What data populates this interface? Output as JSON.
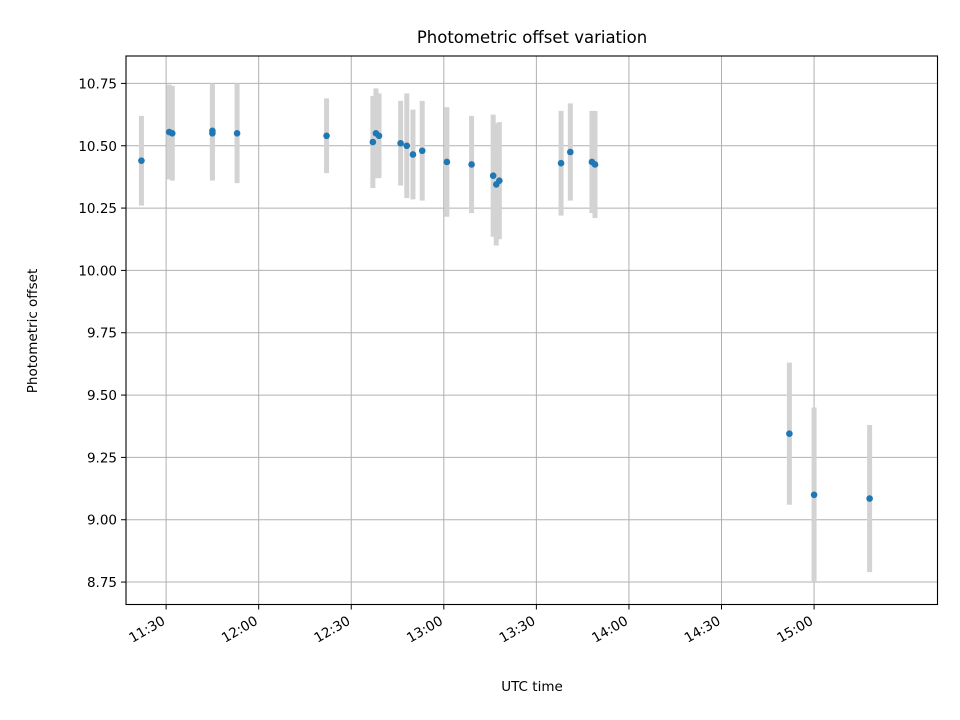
{
  "chart_data": {
    "type": "scatter",
    "title": "Photometric offset variation",
    "xlabel": "UTC time",
    "ylabel": "Photometric offset",
    "xlim": [
      "11:17",
      "15:40"
    ],
    "ylim": [
      8.66,
      10.86
    ],
    "grid": true,
    "colors": {
      "marker": "#1f77b4",
      "errorbar": "#d3d3d3",
      "grid": "#b0b0b0",
      "axes": "#000000"
    },
    "x_ticks": [
      "11:30",
      "12:00",
      "12:30",
      "13:00",
      "13:30",
      "14:00",
      "14:30",
      "15:00"
    ],
    "y_ticks": [
      "8.75",
      "9.00",
      "9.25",
      "9.50",
      "9.75",
      "10.00",
      "10.25",
      "10.50",
      "10.75"
    ],
    "series": [
      {
        "points": [
          {
            "x": "11:22",
            "y": 10.44,
            "err": 0.18
          },
          {
            "x": "11:31",
            "y": 10.555,
            "err": 0.19
          },
          {
            "x": "11:32",
            "y": 10.55,
            "err": 0.19
          },
          {
            "x": "11:45",
            "y": 10.56,
            "err": 0.19
          },
          {
            "x": "11:45",
            "y": 10.55,
            "err": 0.19
          },
          {
            "x": "11:53",
            "y": 10.55,
            "err": 0.2
          },
          {
            "x": "12:22",
            "y": 10.54,
            "err": 0.15
          },
          {
            "x": "12:37",
            "y": 10.515,
            "err": 0.185
          },
          {
            "x": "12:38",
            "y": 10.55,
            "err": 0.18
          },
          {
            "x": "12:39",
            "y": 10.54,
            "err": 0.17
          },
          {
            "x": "12:46",
            "y": 10.51,
            "err": 0.17
          },
          {
            "x": "12:48",
            "y": 10.5,
            "err": 0.21
          },
          {
            "x": "12:50",
            "y": 10.465,
            "err": 0.18
          },
          {
            "x": "12:53",
            "y": 10.48,
            "err": 0.2
          },
          {
            "x": "13:01",
            "y": 10.435,
            "err": 0.22
          },
          {
            "x": "13:09",
            "y": 10.425,
            "err": 0.195
          },
          {
            "x": "13:16",
            "y": 10.38,
            "err": 0.245
          },
          {
            "x": "13:17",
            "y": 10.345,
            "err": 0.245
          },
          {
            "x": "13:18",
            "y": 10.36,
            "err": 0.235
          },
          {
            "x": "13:38",
            "y": 10.43,
            "err": 0.21
          },
          {
            "x": "13:41",
            "y": 10.475,
            "err": 0.195
          },
          {
            "x": "13:48",
            "y": 10.435,
            "err": 0.205
          },
          {
            "x": "13:49",
            "y": 10.425,
            "err": 0.215
          },
          {
            "x": "14:52",
            "y": 9.345,
            "err": 0.285
          },
          {
            "x": "15:00",
            "y": 9.1,
            "err": 0.35
          },
          {
            "x": "15:18",
            "y": 9.085,
            "err": 0.295
          }
        ]
      }
    ]
  }
}
